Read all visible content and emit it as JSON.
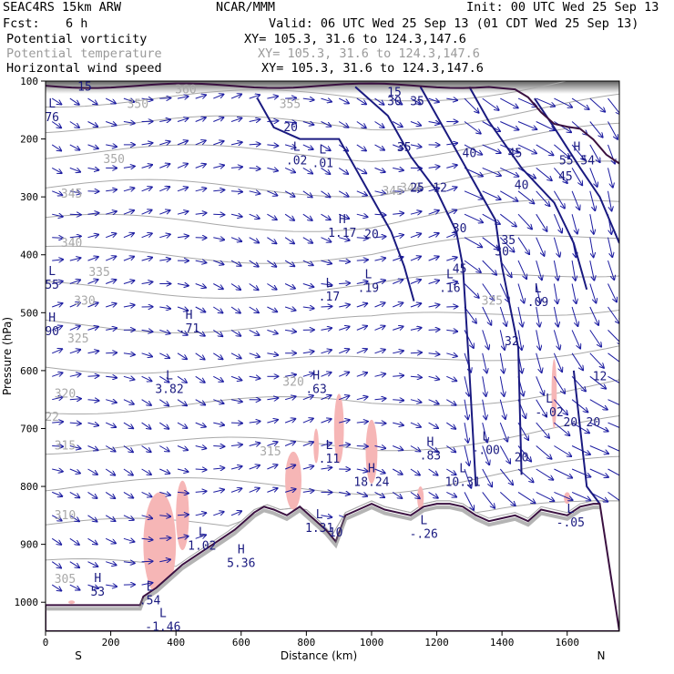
{
  "header": {
    "model": "SEAC4RS 15km ARW",
    "org": "NCAR/MMM",
    "init": "Init: 00 UTC Wed 25 Sep 13",
    "fcst_label": "Fcst:",
    "fcst_value": "6 h",
    "valid": "Valid: 06 UTC Wed 25 Sep 13 (01 CDT Wed 25 Sep 13)",
    "fields": [
      {
        "name": "Potential vorticity",
        "xy": "XY= 105.3, 31.6 to 124.3,147.6"
      },
      {
        "name": "Potential temperature",
        "xy": "XY= 105.3, 31.6 to 124.3,147.6"
      },
      {
        "name": "Horizontal wind speed",
        "xy": "XY= 105.3, 31.6 to 124.3,147.6"
      }
    ]
  },
  "colors": {
    "theta": "#a8a8a8",
    "wind": "#1a1a80",
    "pv_fill": "#f6b6b6",
    "terrain": "#3a1040",
    "arrows": "#1a1aa0"
  },
  "chart_data": {
    "type": "cross-section",
    "xlabel": "Distance (km)",
    "ylabel": "Pressure (hPa)",
    "xlim": [
      0,
      1760
    ],
    "ylim": [
      1050,
      100
    ],
    "x_ticks": [
      0,
      200,
      400,
      600,
      800,
      1000,
      1200,
      1400,
      1600
    ],
    "x_tick_labels": [
      "0",
      "200",
      "400",
      "600",
      "800",
      "1000",
      "1200",
      "1400",
      "1600"
    ],
    "y_ticks": [
      100,
      200,
      300,
      400,
      500,
      600,
      700,
      800,
      900,
      1000
    ],
    "y_tick_labels": [
      "100",
      "200",
      "300",
      "400",
      "500",
      "600",
      "700",
      "800",
      "900",
      "1000"
    ],
    "endpoints": {
      "left": "S",
      "right": "N"
    },
    "terrain_profile": {
      "x": [
        0,
        290,
        300,
        340,
        380,
        420,
        460,
        500,
        540,
        580,
        610,
        640,
        670,
        700,
        740,
        780,
        820,
        860,
        890,
        920,
        960,
        1000,
        1040,
        1080,
        1120,
        1160,
        1200,
        1240,
        1280,
        1320,
        1360,
        1400,
        1440,
        1480,
        1520,
        1560,
        1600,
        1640,
        1680,
        1700
      ],
      "p": [
        1005,
        1005,
        990,
        975,
        955,
        935,
        920,
        905,
        890,
        875,
        860,
        845,
        835,
        840,
        850,
        835,
        855,
        875,
        895,
        850,
        840,
        830,
        840,
        845,
        850,
        835,
        830,
        830,
        835,
        850,
        860,
        855,
        850,
        860,
        840,
        845,
        850,
        835,
        830,
        830
      ]
    },
    "theta_labels": [
      {
        "text": "360",
        "x": 430,
        "p": 115
      },
      {
        "text": "355",
        "x": 750,
        "p": 140
      },
      {
        "text": "350",
        "x": 283,
        "p": 140
      },
      {
        "text": "350",
        "x": 210,
        "p": 235
      },
      {
        "text": "345",
        "x": 80,
        "p": 295
      },
      {
        "text": "345",
        "x": 1065,
        "p": 290
      },
      {
        "text": "340",
        "x": 80,
        "p": 380
      },
      {
        "text": "340",
        "x": 1120,
        "p": 285
      },
      {
        "text": "335",
        "x": 165,
        "p": 430
      },
      {
        "text": "330",
        "x": 120,
        "p": 480
      },
      {
        "text": "325",
        "x": 100,
        "p": 545
      },
      {
        "text": "325",
        "x": 1370,
        "p": 480
      },
      {
        "text": "320",
        "x": 60,
        "p": 640
      },
      {
        "text": "320",
        "x": 760,
        "p": 620
      },
      {
        "text": "315",
        "x": 60,
        "p": 730
      },
      {
        "text": "315",
        "x": 690,
        "p": 740
      },
      {
        "text": "310",
        "x": 60,
        "p": 850
      },
      {
        "text": "305",
        "x": 60,
        "p": 960
      },
      {
        "text": "22",
        "x": 20,
        "p": 680
      }
    ],
    "wind_speed_labels": [
      {
        "text": "15",
        "x": 120,
        "p": 110
      },
      {
        "text": "20",
        "x": 752,
        "p": 180
      },
      {
        "text": "15",
        "x": 1070,
        "p": 120
      },
      {
        "text": "30",
        "x": 1070,
        "p": 135
      },
      {
        "text": "35",
        "x": 1140,
        "p": 135
      },
      {
        "text": "35",
        "x": 1100,
        "p": 215
      },
      {
        "text": "40",
        "x": 1300,
        "p": 225
      },
      {
        "text": "45",
        "x": 1440,
        "p": 225
      },
      {
        "text": "45",
        "x": 1595,
        "p": 265
      },
      {
        "text": "40",
        "x": 1460,
        "p": 280
      },
      {
        "text": "25",
        "x": 1140,
        "p": 285
      },
      {
        "text": "12",
        "x": 1210,
        "p": 285
      },
      {
        "text": "20",
        "x": 1000,
        "p": 365
      },
      {
        "text": "30",
        "x": 1270,
        "p": 355
      },
      {
        "text": "30",
        "x": 1400,
        "p": 395
      },
      {
        "text": "35",
        "x": 1420,
        "p": 375
      },
      {
        "text": "45",
        "x": 1270,
        "p": 425
      },
      {
        "text": "32",
        "x": 1430,
        "p": 550
      },
      {
        "text": "20",
        "x": 1610,
        "p": 690
      },
      {
        "text": "20",
        "x": 1460,
        "p": 750
      },
      {
        "text": "20",
        "x": 1680,
        "p": 690
      },
      {
        "text": "12",
        "x": 1700,
        "p": 610
      },
      {
        "text": "10",
        "x": 890,
        "p": 880
      }
    ],
    "pv_extrema": [
      {
        "type": "L",
        "value": "76",
        "x": 20,
        "p": 150
      },
      {
        "type": "L",
        "value": ".02",
        "x": 770,
        "p": 225
      },
      {
        "type": "L",
        "value": ".01",
        "x": 850,
        "p": 230
      },
      {
        "type": "H",
        "value": "1.17",
        "x": 910,
        "p": 350
      },
      {
        "type": "L",
        "value": "55",
        "x": 20,
        "p": 440
      },
      {
        "type": "H",
        "value": "90",
        "x": 20,
        "p": 520
      },
      {
        "type": "H",
        "value": ".71",
        "x": 440,
        "p": 515
      },
      {
        "type": "L",
        "value": ".17",
        "x": 870,
        "p": 460
      },
      {
        "type": "L",
        "value": ".19",
        "x": 990,
        "p": 445
      },
      {
        "type": "L",
        "value": ".16",
        "x": 1240,
        "p": 445
      },
      {
        "type": "L",
        "value": ".09",
        "x": 1510,
        "p": 470
      },
      {
        "type": "H",
        "value": "55.54",
        "x": 1630,
        "p": 225
      },
      {
        "type": "L",
        "value": "3.82",
        "x": 380,
        "p": 620
      },
      {
        "type": "H",
        "value": ".63",
        "x": 830,
        "p": 620
      },
      {
        "type": "L",
        "value": "-.02",
        "x": 1545,
        "p": 660
      },
      {
        "type": "L",
        "value": ".11",
        "x": 870,
        "p": 740
      },
      {
        "type": "H",
        "value": "18.24",
        "x": 1000,
        "p": 780
      },
      {
        "type": "H",
        "value": ".83",
        "x": 1180,
        "p": 735
      },
      {
        "type": "L",
        "value": "-.00",
        "x": 1350,
        "p": 725
      },
      {
        "type": "L",
        "value": "10.31",
        "x": 1280,
        "p": 780
      },
      {
        "type": "L",
        "value": "1.31",
        "x": 840,
        "p": 860
      },
      {
        "type": "L",
        "value": "-.26",
        "x": 1160,
        "p": 870
      },
      {
        "type": "L",
        "value": "1.02",
        "x": 480,
        "p": 890
      },
      {
        "type": "H",
        "value": "5.36",
        "x": 600,
        "p": 920
      },
      {
        "type": "H",
        "value": "53",
        "x": 160,
        "p": 970
      },
      {
        "type": "L",
        "value": ".54",
        "x": 320,
        "p": 985
      },
      {
        "type": "L",
        "value": "-1.46",
        "x": 360,
        "p": 1030
      },
      {
        "type": "L",
        "value": "-.05",
        "x": 1610,
        "p": 850
      }
    ]
  }
}
